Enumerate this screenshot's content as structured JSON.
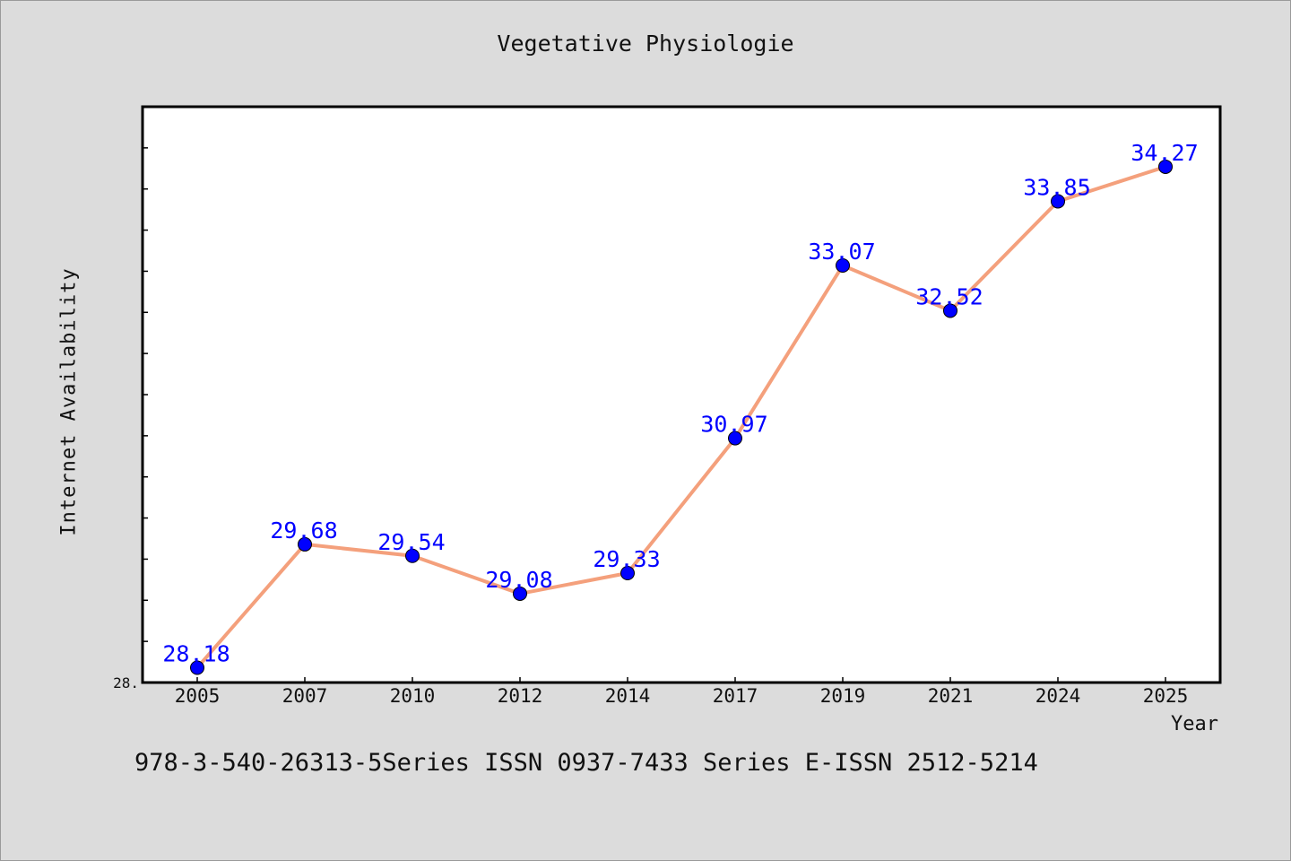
{
  "chart_data": {
    "type": "line",
    "title": "Vegetative Physiologie",
    "xlabel": "Year",
    "ylabel": "Internet Availability",
    "categories": [
      "2005",
      "2007",
      "2010",
      "2012",
      "2014",
      "2017",
      "2019",
      "2021",
      "2024",
      "2025"
    ],
    "series": [
      {
        "values": [
          28.18,
          29.68,
          29.54,
          29.08,
          29.33,
          30.97,
          33.07,
          32.52,
          33.85,
          34.27
        ]
      }
    ],
    "data_labels": [
      "28.18",
      "29.68",
      "29.54",
      "29.08",
      "29.33",
      "30.97",
      "33.07",
      "32.52",
      "33.85",
      "34.27"
    ],
    "y_tick_labels": [
      "28."
    ],
    "ylim": [
      28.0,
      35.0
    ],
    "grid": false,
    "colors": {
      "line": "#f4a07c",
      "marker": "#0000ff",
      "label": "#0000ff",
      "background": "#dcdcdc",
      "plot_background": "#ffffff"
    }
  },
  "footer": {
    "text": "978-3-540-26313-5Series ISSN 0937-7433 Series E-ISSN 2512-5214"
  }
}
